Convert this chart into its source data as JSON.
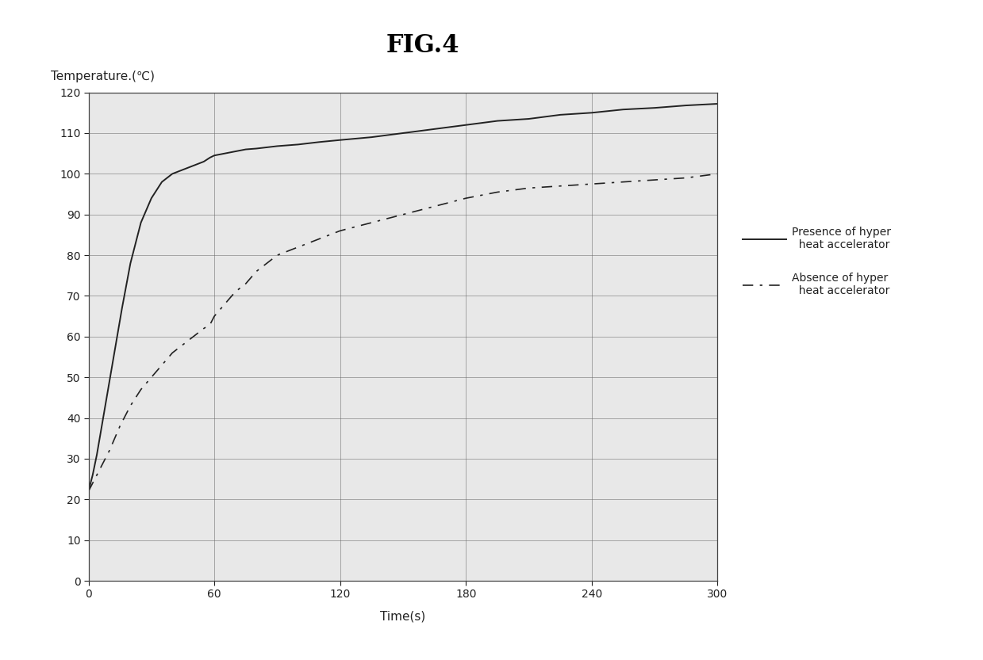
{
  "title": "FIG.4",
  "ylabel": "Temperature.(℃)",
  "xlabel": "Time(s)",
  "xlim": [
    0,
    300
  ],
  "ylim": [
    0,
    120
  ],
  "xticks": [
    0,
    60,
    120,
    180,
    240,
    300
  ],
  "yticks": [
    0,
    10,
    20,
    30,
    40,
    50,
    60,
    70,
    80,
    90,
    100,
    110,
    120
  ],
  "fig_bg": "#ffffff",
  "plot_bg": "#e8e8e8",
  "legend1": "Presence of hyper\n  heat accelerator",
  "legend2": "Absence of hyper\n  heat accelerator",
  "presence_x": [
    0,
    2,
    4,
    6,
    8,
    10,
    13,
    16,
    20,
    25,
    30,
    35,
    40,
    45,
    50,
    55,
    58,
    60,
    65,
    70,
    75,
    80,
    90,
    100,
    110,
    120,
    135,
    150,
    165,
    180,
    195,
    210,
    225,
    240,
    255,
    270,
    285,
    300
  ],
  "presence_y": [
    22,
    26,
    31,
    37,
    43,
    49,
    58,
    67,
    78,
    88,
    94,
    98,
    100,
    101,
    102,
    103,
    104,
    104.5,
    105,
    105.5,
    106,
    106.2,
    106.8,
    107.2,
    107.8,
    108.3,
    109,
    110,
    111,
    112,
    113,
    113.5,
    114.5,
    115,
    115.8,
    116.2,
    116.8,
    117.2
  ],
  "absence_x": [
    0,
    5,
    10,
    15,
    20,
    25,
    30,
    35,
    40,
    45,
    50,
    55,
    58,
    60,
    65,
    70,
    75,
    80,
    90,
    100,
    110,
    120,
    135,
    150,
    165,
    180,
    195,
    210,
    225,
    240,
    255,
    270,
    285,
    300
  ],
  "absence_y": [
    22,
    27,
    32,
    38,
    43,
    47,
    50,
    53,
    56,
    58,
    60,
    62,
    63,
    65,
    68,
    71,
    73,
    76,
    80,
    82,
    84,
    86,
    88,
    90,
    92,
    94,
    95.5,
    96.5,
    97,
    97.5,
    98,
    98.5,
    99,
    100
  ],
  "line_color": "#222222",
  "grid_color": "#666666",
  "title_fontsize": 22,
  "label_fontsize": 11,
  "tick_fontsize": 10,
  "legend_fontsize": 10
}
